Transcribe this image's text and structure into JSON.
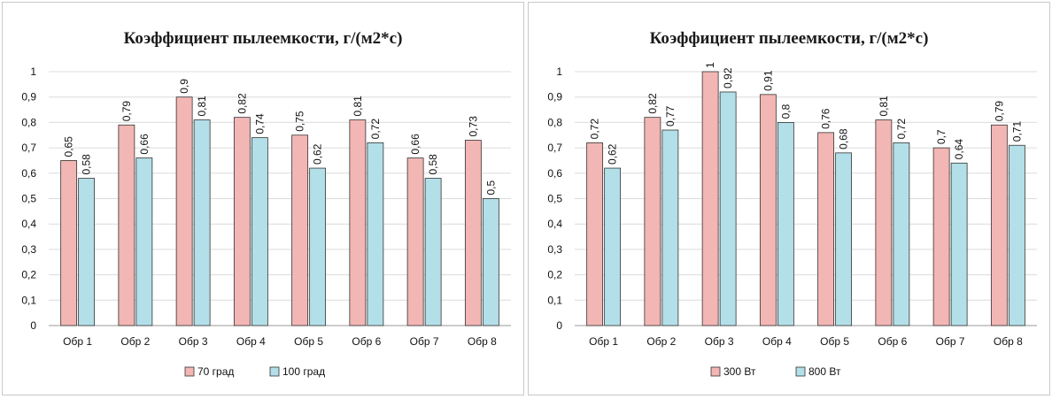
{
  "chart_data": [
    {
      "type": "bar",
      "title": "Коэффициент пылеемкости, г/(м2*с)",
      "categories": [
        "Обр 1",
        "Обр 2",
        "Обр 3",
        "Обр 4",
        "Обр 5",
        "Обр 6",
        "Обр 7",
        "Обр 8"
      ],
      "series": [
        {
          "name": "70 град",
          "color": "#f2b6b4",
          "values": [
            0.65,
            0.79,
            0.9,
            0.82,
            0.75,
            0.81,
            0.66,
            0.73
          ],
          "labels": [
            "0,65",
            "0,79",
            "0,9",
            "0,82",
            "0,75",
            "0,81",
            "0,66",
            "0,73"
          ]
        },
        {
          "name": "100 град",
          "color": "#b3dfe9",
          "values": [
            0.58,
            0.66,
            0.81,
            0.74,
            0.62,
            0.72,
            0.58,
            0.5
          ],
          "labels": [
            "0,58",
            "0,66",
            "0,81",
            "0,74",
            "0,62",
            "0,72",
            "0,58",
            "0,5"
          ]
        }
      ],
      "ylim": [
        0,
        1
      ],
      "yticks": [
        "0",
        "0,1",
        "0,2",
        "0,3",
        "0,4",
        "0,5",
        "0,6",
        "0,7",
        "0,8",
        "0,9",
        "1"
      ],
      "grid": true,
      "legend_position": "bottom"
    },
    {
      "type": "bar",
      "title": "Коэффициент пылеемкости, г/(м2*с)",
      "categories": [
        "Обр 1",
        "Обр 2",
        "Обр 3",
        "Обр 4",
        "Обр 5",
        "Обр 6",
        "Обр 7",
        "Обр 8"
      ],
      "series": [
        {
          "name": "300 Вт",
          "color": "#f2b6b4",
          "values": [
            0.72,
            0.82,
            1,
            0.91,
            0.76,
            0.81,
            0.7,
            0.79
          ],
          "labels": [
            "0,72",
            "0,82",
            "1",
            "0,91",
            "0,76",
            "0,81",
            "0,7",
            "0,79"
          ]
        },
        {
          "name": "800 Вт",
          "color": "#b3dfe9",
          "values": [
            0.62,
            0.77,
            0.92,
            0.8,
            0.68,
            0.72,
            0.64,
            0.71
          ],
          "labels": [
            "0,62",
            "0,77",
            "0,92",
            "0,8",
            "0,68",
            "0,72",
            "0,64",
            "0,71"
          ]
        }
      ],
      "ylim": [
        0,
        1
      ],
      "yticks": [
        "0",
        "0,1",
        "0,2",
        "0,3",
        "0,4",
        "0,5",
        "0,6",
        "0,7",
        "0,8",
        "0,9",
        "1"
      ],
      "grid": true,
      "legend_position": "bottom"
    }
  ]
}
